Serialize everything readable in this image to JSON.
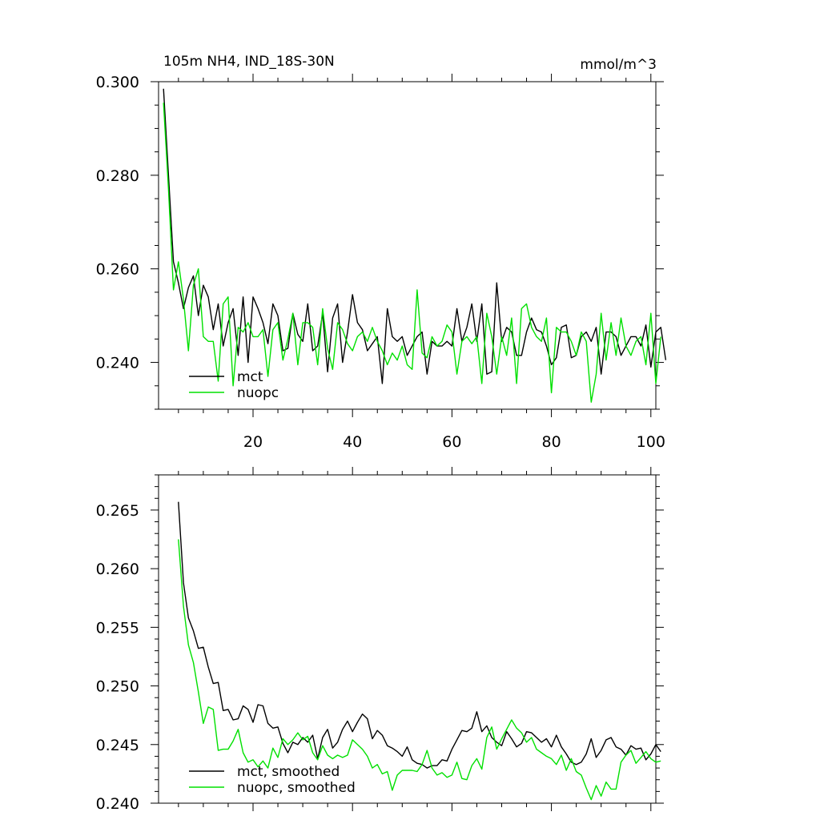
{
  "colors": {
    "mct": "#000000",
    "nuopc": "#00e000"
  },
  "chart_data": [
    {
      "type": "line",
      "title": "105m NH4, IND_18S-30N",
      "units": "mmol/m^3",
      "xlim": [
        1,
        101
      ],
      "ylim": [
        0.23,
        0.3
      ],
      "xticks": [
        20,
        40,
        60,
        80,
        100
      ],
      "yticks": [
        0.24,
        0.26,
        0.28,
        0.3
      ],
      "ytick_labels": [
        "0.240",
        "0.260",
        "0.280",
        "0.300"
      ],
      "show_x_labels": true,
      "legend_position": "bottom-left",
      "series": [
        {
          "name": "mct",
          "color": "#000000",
          "x_start": 2,
          "values": [
            0.2985,
            0.28,
            0.2615,
            0.257,
            0.2515,
            0.256,
            0.2585,
            0.25,
            0.2565,
            0.254,
            0.247,
            0.2525,
            0.2435,
            0.2485,
            0.2515,
            0.2415,
            0.254,
            0.24,
            0.254,
            0.2515,
            0.2485,
            0.244,
            0.2525,
            0.25,
            0.2425,
            0.243,
            0.2505,
            0.246,
            0.2445,
            0.2525,
            0.2425,
            0.2435,
            0.2505,
            0.238,
            0.2495,
            0.2525,
            0.24,
            0.2465,
            0.2545,
            0.2485,
            0.247,
            0.2425,
            0.244,
            0.2455,
            0.2355,
            0.2515,
            0.2455,
            0.2445,
            0.2455,
            0.2415,
            0.2435,
            0.2455,
            0.2465,
            0.2375,
            0.2445,
            0.2435,
            0.2435,
            0.2445,
            0.2435,
            0.2515,
            0.2445,
            0.2475,
            0.2525,
            0.2445,
            0.2525,
            0.2375,
            0.238,
            0.257,
            0.2445,
            0.2475,
            0.2465,
            0.2415,
            0.2415,
            0.2465,
            0.2495,
            0.247,
            0.2465,
            0.2435,
            0.2395,
            0.241,
            0.2475,
            0.248,
            0.241,
            0.2415,
            0.2455,
            0.2465,
            0.2445,
            0.2475,
            0.2375,
            0.2465,
            0.2465,
            0.2455,
            0.2415,
            0.2435,
            0.2455,
            0.2455,
            0.2435,
            0.248,
            0.239,
            0.2465,
            0.2475,
            0.2405
          ]
        },
        {
          "name": "nuopc",
          "color": "#00e000",
          "x_start": 2,
          "values": [
            0.2955,
            0.277,
            0.2555,
            0.2615,
            0.2535,
            0.2425,
            0.2565,
            0.26,
            0.2455,
            0.2445,
            0.2445,
            0.236,
            0.2525,
            0.254,
            0.235,
            0.2475,
            0.2465,
            0.2485,
            0.2455,
            0.2455,
            0.247,
            0.237,
            0.247,
            0.2485,
            0.2405,
            0.245,
            0.2505,
            0.2395,
            0.2485,
            0.2485,
            0.2475,
            0.2395,
            0.2515,
            0.243,
            0.2385,
            0.2485,
            0.247,
            0.244,
            0.2425,
            0.2455,
            0.2465,
            0.2445,
            0.2475,
            0.2445,
            0.2425,
            0.2395,
            0.242,
            0.2405,
            0.2435,
            0.2395,
            0.2385,
            0.2555,
            0.242,
            0.241,
            0.2455,
            0.2435,
            0.2445,
            0.248,
            0.2465,
            0.2375,
            0.2445,
            0.2455,
            0.244,
            0.2455,
            0.2355,
            0.2505,
            0.2455,
            0.2375,
            0.2455,
            0.2415,
            0.2495,
            0.2355,
            0.2515,
            0.2525,
            0.2475,
            0.2455,
            0.2445,
            0.2495,
            0.2335,
            0.2475,
            0.2465,
            0.2465,
            0.2445,
            0.2415,
            0.2465,
            0.2445,
            0.2315,
            0.2375,
            0.2505,
            0.2405,
            0.2485,
            0.2415,
            0.2495,
            0.2435,
            0.2415,
            0.2445,
            0.2455,
            0.2395,
            0.2505,
            0.2355,
            0.2455
          ]
        }
      ],
      "legend": [
        {
          "label": "mct",
          "color": "#000000"
        },
        {
          "label": "nuopc",
          "color": "#00e000"
        }
      ]
    },
    {
      "type": "line",
      "title": "",
      "units": "",
      "xlim": [
        1,
        101
      ],
      "ylim": [
        0.24,
        0.268
      ],
      "xticks": [
        20,
        40,
        60,
        80,
        100
      ],
      "yticks": [
        0.24,
        0.245,
        0.25,
        0.255,
        0.26,
        0.265
      ],
      "ytick_labels": [
        "0.240",
        "0.245",
        "0.250",
        "0.255",
        "0.260",
        "0.265"
      ],
      "show_x_labels": false,
      "legend_position": "bottom-left",
      "series": [
        {
          "name": "mct, smoothed",
          "color": "#000000",
          "x_start": 5,
          "values": [
            0.2657,
            0.2588,
            0.2558,
            0.2547,
            0.2532,
            0.2533,
            0.2516,
            0.2502,
            0.2503,
            0.2479,
            0.248,
            0.2471,
            0.2472,
            0.2483,
            0.248,
            0.2469,
            0.2484,
            0.2483,
            0.2468,
            0.2464,
            0.2465,
            0.2451,
            0.2443,
            0.2452,
            0.245,
            0.2456,
            0.2452,
            0.2458,
            0.2438,
            0.2456,
            0.2463,
            0.2447,
            0.2452,
            0.2463,
            0.247,
            0.2461,
            0.2469,
            0.2476,
            0.2472,
            0.2455,
            0.2462,
            0.2458,
            0.2449,
            0.2447,
            0.2444,
            0.244,
            0.2448,
            0.2437,
            0.2434,
            0.2433,
            0.243,
            0.2432,
            0.2432,
            0.2437,
            0.2436,
            0.2446,
            0.2454,
            0.2462,
            0.2461,
            0.2464,
            0.2478,
            0.2461,
            0.2466,
            0.2456,
            0.2452,
            0.2449,
            0.2461,
            0.2455,
            0.2448,
            0.2451,
            0.2461,
            0.246,
            0.2456,
            0.2452,
            0.2455,
            0.2448,
            0.2458,
            0.2448,
            0.2442,
            0.2435,
            0.2433,
            0.2435,
            0.2442,
            0.2455,
            0.2439,
            0.2445,
            0.2454,
            0.2456,
            0.2448,
            0.2446,
            0.2441,
            0.2449,
            0.2446,
            0.2447,
            0.2437,
            0.2442,
            0.245,
            0.2444
          ]
        },
        {
          "name": "nuopc, smoothed",
          "color": "#00e000",
          "x_start": 5,
          "values": [
            0.2625,
            0.2568,
            0.2535,
            0.252,
            0.2495,
            0.2468,
            0.2482,
            0.248,
            0.2445,
            0.2446,
            0.2446,
            0.2453,
            0.2463,
            0.2443,
            0.2435,
            0.2437,
            0.2431,
            0.2436,
            0.243,
            0.2447,
            0.2439,
            0.2455,
            0.245,
            0.2454,
            0.246,
            0.2454,
            0.2457,
            0.2443,
            0.2437,
            0.2449,
            0.2441,
            0.2438,
            0.2441,
            0.2439,
            0.2441,
            0.2454,
            0.245,
            0.2446,
            0.244,
            0.243,
            0.2433,
            0.2425,
            0.2427,
            0.2411,
            0.2424,
            0.2428,
            0.2428,
            0.2428,
            0.2427,
            0.2433,
            0.2445,
            0.243,
            0.2424,
            0.2426,
            0.2422,
            0.2424,
            0.2435,
            0.2421,
            0.242,
            0.2432,
            0.2438,
            0.2429,
            0.2456,
            0.2465,
            0.2446,
            0.2455,
            0.2463,
            0.2471,
            0.2464,
            0.246,
            0.2452,
            0.2456,
            0.2446,
            0.2443,
            0.244,
            0.2438,
            0.2433,
            0.2441,
            0.2428,
            0.2438,
            0.2427,
            0.2424,
            0.2413,
            0.2403,
            0.2415,
            0.2406,
            0.2418,
            0.2412,
            0.2412,
            0.2435,
            0.2441,
            0.2445,
            0.2434,
            0.2439,
            0.2444,
            0.2438,
            0.2435,
            0.2436
          ]
        }
      ],
      "legend": [
        {
          "label": "mct, smoothed",
          "color": "#000000"
        },
        {
          "label": "nuopc, smoothed",
          "color": "#00e000"
        }
      ]
    }
  ]
}
